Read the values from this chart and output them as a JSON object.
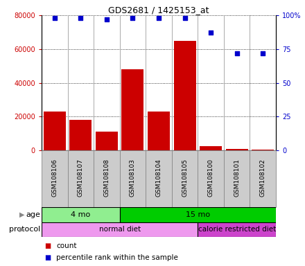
{
  "title": "GDS2681 / 1425153_at",
  "samples": [
    "GSM108106",
    "GSM108107",
    "GSM108108",
    "GSM108103",
    "GSM108104",
    "GSM108105",
    "GSM108100",
    "GSM108101",
    "GSM108102"
  ],
  "counts": [
    23000,
    18000,
    11000,
    48000,
    23000,
    65000,
    2500,
    700,
    500
  ],
  "percentile_ranks": [
    98,
    98,
    97,
    98,
    98,
    98,
    87,
    72,
    72
  ],
  "age_groups": [
    {
      "label": "4 mo",
      "start": 0,
      "end": 3,
      "color": "#90EE90"
    },
    {
      "label": "15 mo",
      "start": 3,
      "end": 9,
      "color": "#00CC00"
    }
  ],
  "protocol_groups": [
    {
      "label": "normal diet",
      "start": 0,
      "end": 6,
      "color": "#EE99EE"
    },
    {
      "label": "calorie restricted diet",
      "start": 6,
      "end": 9,
      "color": "#CC44CC"
    }
  ],
  "bar_color": "#CC0000",
  "dot_color": "#0000CC",
  "left_axis_color": "#CC0000",
  "right_axis_color": "#0000CC",
  "ylim_left": [
    0,
    80000
  ],
  "ylim_right": [
    0,
    100
  ],
  "yticks_left": [
    0,
    20000,
    40000,
    60000,
    80000
  ],
  "ytick_labels_left": [
    "0",
    "20000",
    "40000",
    "60000",
    "80000"
  ],
  "yticks_right": [
    0,
    25,
    50,
    75,
    100
  ],
  "ytick_labels_right": [
    "0",
    "25",
    "50",
    "75",
    "100%"
  ],
  "grid_color": "#000000",
  "legend_count_color": "#CC0000",
  "legend_pct_color": "#0000CC",
  "sample_box_color": "#CCCCCC",
  "sample_box_edge": "#888888"
}
